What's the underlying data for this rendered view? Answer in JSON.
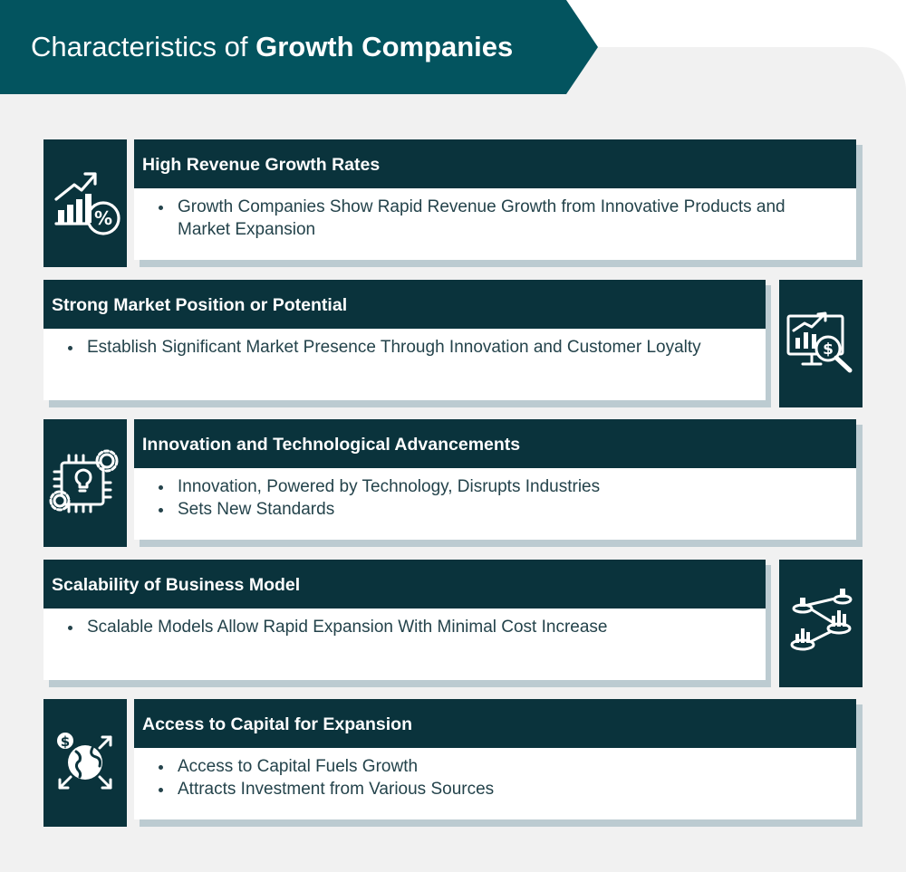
{
  "header": {
    "title_regular": "Characteristics of ",
    "title_bold": "Growth Companies"
  },
  "colors": {
    "banner": "#03545f",
    "dark": "#0a333c",
    "panel": "#f1f1f1",
    "card_shadow": "#bccbd1",
    "text": "#24434b"
  },
  "items": [
    {
      "title": "High Revenue Growth Rates",
      "icon": "revenue-growth-percent-icon",
      "bullets": [
        "Growth Companies Show Rapid Revenue Growth from Innovative Products and Market Expansion"
      ]
    },
    {
      "title": "Strong Market Position or Potential",
      "icon": "market-analysis-monitor-icon",
      "bullets": [
        "Establish Significant Market Presence Through Innovation and Customer Loyalty"
      ]
    },
    {
      "title": "Innovation and Technological Advancements",
      "icon": "innovation-chip-gears-icon",
      "bullets": [
        "Innovation, Powered by Technology, Disrupts Industries",
        "Sets New Standards"
      ]
    },
    {
      "title": "Scalability of Business Model",
      "icon": "scalability-network-icon",
      "bullets": [
        "Scalable Models Allow Rapid Expansion With Minimal Cost Increase"
      ]
    },
    {
      "title": "Access to Capital for Expansion",
      "icon": "capital-expansion-globe-icon",
      "bullets": [
        "Access to Capital Fuels Growth",
        "Attracts Investment from Various Sources"
      ]
    }
  ]
}
